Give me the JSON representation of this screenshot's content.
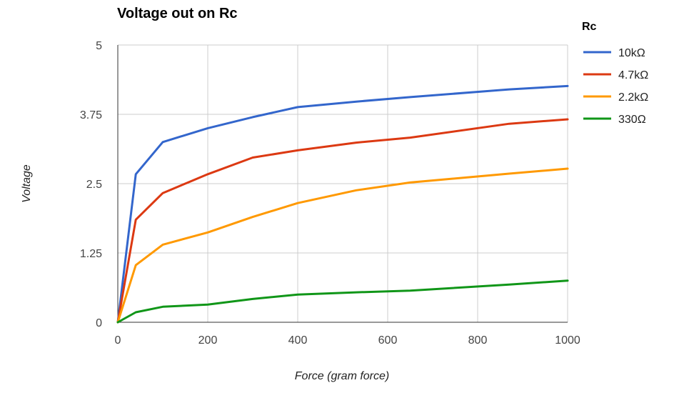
{
  "chart_data": {
    "type": "line",
    "title": "Voltage out on Rc",
    "xlabel": "Force (gram force)",
    "ylabel": "Voltage",
    "xlim": [
      0,
      1000
    ],
    "ylim": [
      0,
      5
    ],
    "x_ticks": [
      "0",
      "200",
      "400",
      "600",
      "800",
      "1000"
    ],
    "y_ticks": [
      "0",
      "1.25",
      "2.5",
      "3.75",
      "5"
    ],
    "grid": true,
    "legend": {
      "title": "Rc",
      "position": "right"
    },
    "series": [
      {
        "name": "10kΩ",
        "color": "#3366cc",
        "points": [
          [
            0,
            0
          ],
          [
            40,
            2.67
          ],
          [
            100,
            3.25
          ],
          [
            200,
            3.5
          ],
          [
            300,
            3.7
          ],
          [
            400,
            3.88
          ],
          [
            530,
            3.98
          ],
          [
            650,
            4.06
          ],
          [
            870,
            4.2
          ],
          [
            1000,
            4.26
          ]
        ]
      },
      {
        "name": "4.7kΩ",
        "color": "#dc3912",
        "points": [
          [
            0,
            0
          ],
          [
            40,
            1.85
          ],
          [
            100,
            2.33
          ],
          [
            200,
            2.67
          ],
          [
            300,
            2.97
          ],
          [
            400,
            3.1
          ],
          [
            530,
            3.24
          ],
          [
            650,
            3.33
          ],
          [
            870,
            3.58
          ],
          [
            1000,
            3.66
          ]
        ]
      },
      {
        "name": "2.2kΩ",
        "color": "#ff9900",
        "points": [
          [
            0,
            0
          ],
          [
            40,
            1.03
          ],
          [
            100,
            1.4
          ],
          [
            200,
            1.62
          ],
          [
            300,
            1.9
          ],
          [
            400,
            2.15
          ],
          [
            530,
            2.38
          ],
          [
            650,
            2.52
          ],
          [
            870,
            2.68
          ],
          [
            1000,
            2.77
          ]
        ]
      },
      {
        "name": "330Ω",
        "color": "#109618",
        "points": [
          [
            0,
            0
          ],
          [
            40,
            0.18
          ],
          [
            100,
            0.28
          ],
          [
            200,
            0.32
          ],
          [
            300,
            0.42
          ],
          [
            400,
            0.5
          ],
          [
            530,
            0.54
          ],
          [
            650,
            0.57
          ],
          [
            870,
            0.68
          ],
          [
            1000,
            0.75
          ]
        ]
      }
    ]
  }
}
